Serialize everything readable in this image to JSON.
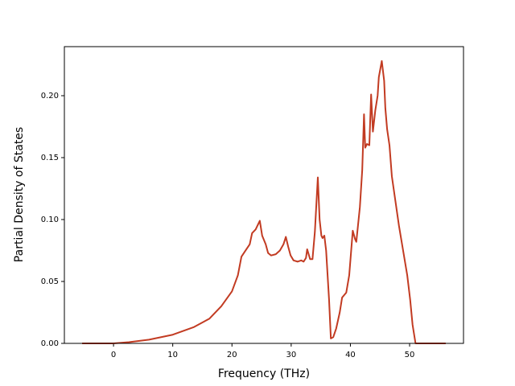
{
  "chart_data": {
    "type": "line",
    "xlabel": "Frequency (THz)",
    "ylabel": "Partial Density of States",
    "color": "#c23b22",
    "x": [
      -5.3,
      0,
      2.6,
      6,
      10,
      13.5,
      16.2,
      18.2,
      20,
      21,
      21.6,
      22.3,
      23,
      23.4,
      24,
      24.7,
      25.1,
      25.7,
      26.1,
      26.6,
      27.4,
      28.1,
      28.7,
      29.1,
      29.5,
      29.9,
      30.4,
      31.1,
      31.7,
      32.1,
      32.5,
      32.7,
      33.2,
      33.6,
      34,
      34.5,
      34.8,
      35.1,
      35.3,
      35.6,
      35.9,
      36.4,
      36.7,
      37.1,
      37.6,
      38.2,
      38.6,
      39.3,
      39.8,
      40.4,
      40.8,
      41.0,
      41.6,
      42.0,
      42.3,
      42.5,
      42.8,
      43.2,
      43.5,
      43.8,
      44.2,
      44.6,
      44.8,
      45.3,
      45.7,
      45.9,
      46.2,
      46.6,
      47.0,
      47.6,
      48.2,
      48.9,
      49.6,
      50.1,
      50.5,
      51.0,
      56.1
    ],
    "values": [
      0,
      0,
      0.001,
      0.003,
      0.007,
      0.013,
      0.02,
      0.03,
      0.042,
      0.055,
      0.07,
      0.075,
      0.08,
      0.089,
      0.092,
      0.099,
      0.087,
      0.08,
      0.073,
      0.071,
      0.072,
      0.075,
      0.08,
      0.086,
      0.078,
      0.071,
      0.067,
      0.066,
      0.067,
      0.066,
      0.069,
      0.076,
      0.068,
      0.068,
      0.09,
      0.134,
      0.1,
      0.087,
      0.085,
      0.087,
      0.075,
      0.035,
      0.004,
      0.005,
      0.012,
      0.025,
      0.037,
      0.041,
      0.055,
      0.091,
      0.084,
      0.082,
      0.11,
      0.14,
      0.185,
      0.158,
      0.161,
      0.16,
      0.201,
      0.171,
      0.188,
      0.2,
      0.215,
      0.228,
      0.212,
      0.19,
      0.173,
      0.16,
      0.135,
      0.115,
      0.095,
      0.075,
      0.055,
      0.035,
      0.015,
      0,
      0
    ],
    "xlim": [
      -8.3,
      59.1
    ],
    "ylim": [
      0,
      0.2396
    ],
    "xticks": [
      0,
      10,
      20,
      30,
      40,
      50
    ],
    "yticks": [
      {
        "value": 0,
        "label": "0.00"
      },
      0.05,
      {
        "value": 0.1,
        "label": "0.10"
      },
      0.15,
      {
        "value": 0.2,
        "label": "0.20"
      }
    ]
  }
}
